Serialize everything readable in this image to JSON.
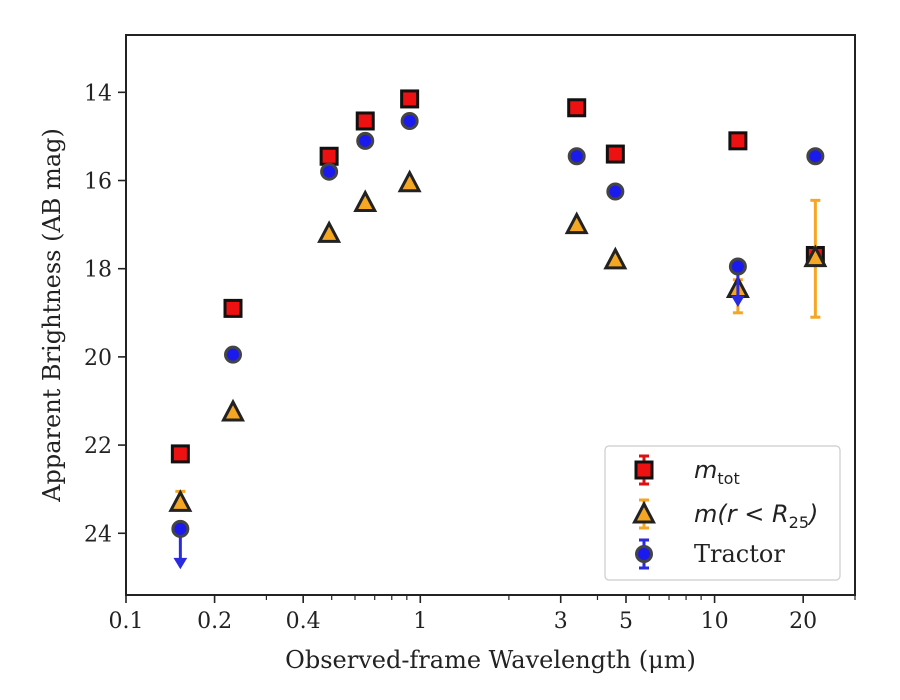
{
  "chart_data": {
    "type": "scatter",
    "xlabel": "Observed-frame Wavelength (μm)",
    "ylabel": "Apparent Brightness (AB mag)",
    "x_scale": "log",
    "xlim": [
      0.1,
      30
    ],
    "ylim": [
      25.4,
      12.7
    ],
    "y_inverted": true,
    "grid": false,
    "legend_position": "lower-right",
    "x_ticks": [
      {
        "value": 0.1,
        "label": "0.1"
      },
      {
        "value": 0.2,
        "label": "0.2"
      },
      {
        "value": 0.4,
        "label": "0.4"
      },
      {
        "value": 1,
        "label": "1"
      },
      {
        "value": 3,
        "label": "3"
      },
      {
        "value": 5,
        "label": "5"
      },
      {
        "value": 10,
        "label": "10"
      },
      {
        "value": 20,
        "label": "20"
      }
    ],
    "y_ticks": [
      {
        "value": 14,
        "label": "14"
      },
      {
        "value": 16,
        "label": "16"
      },
      {
        "value": 18,
        "label": "18"
      },
      {
        "value": 20,
        "label": "20"
      },
      {
        "value": 22,
        "label": "22"
      },
      {
        "value": 24,
        "label": "24"
      }
    ],
    "series": [
      {
        "name": "m_tot",
        "legend_main": "m",
        "legend_sub": "tot",
        "marker": "square",
        "color": "#ee1111",
        "errcolor": "#dd1111",
        "points": [
          {
            "x": 0.153,
            "y": 22.2
          },
          {
            "x": 0.231,
            "y": 18.9
          },
          {
            "x": 0.49,
            "y": 15.45
          },
          {
            "x": 0.65,
            "y": 14.65
          },
          {
            "x": 0.92,
            "y": 14.15
          },
          {
            "x": 3.4,
            "y": 14.35
          },
          {
            "x": 4.6,
            "y": 15.4
          },
          {
            "x": 12.0,
            "y": 15.1
          },
          {
            "x": 22.0,
            "y": 17.7
          }
        ]
      },
      {
        "name": "m(r < R25)",
        "legend_main": "m(r < R",
        "legend_sub": "25",
        "legend_tail": ")",
        "marker": "triangle",
        "color": "#f5a623",
        "errcolor": "#f5a623",
        "points": [
          {
            "x": 0.153,
            "y": 23.3,
            "yerr": [
              23.05,
              23.45
            ]
          },
          {
            "x": 0.231,
            "y": 21.25
          },
          {
            "x": 0.49,
            "y": 17.2
          },
          {
            "x": 0.65,
            "y": 16.5
          },
          {
            "x": 0.92,
            "y": 16.05
          },
          {
            "x": 3.4,
            "y": 17.0
          },
          {
            "x": 4.6,
            "y": 17.8
          },
          {
            "x": 12.0,
            "y": 18.45,
            "yerr": [
              18.25,
              19.0
            ]
          },
          {
            "x": 22.0,
            "y": 17.75,
            "yerr": [
              16.45,
              19.1
            ]
          }
        ]
      },
      {
        "name": "Tractor",
        "legend_main": "Tractor",
        "marker": "circle",
        "color": "#1a1aee",
        "errcolor": "#2a2ae0",
        "points": [
          {
            "x": 0.153,
            "y": 23.9,
            "upper_limit_to": 24.75
          },
          {
            "x": 0.231,
            "y": 19.95
          },
          {
            "x": 0.49,
            "y": 15.8
          },
          {
            "x": 0.65,
            "y": 15.1
          },
          {
            "x": 0.92,
            "y": 14.65
          },
          {
            "x": 3.4,
            "y": 15.45
          },
          {
            "x": 4.6,
            "y": 16.25
          },
          {
            "x": 12.0,
            "y": 17.95,
            "upper_limit_to": 18.8
          },
          {
            "x": 22.0,
            "y": 15.45
          }
        ]
      }
    ]
  }
}
